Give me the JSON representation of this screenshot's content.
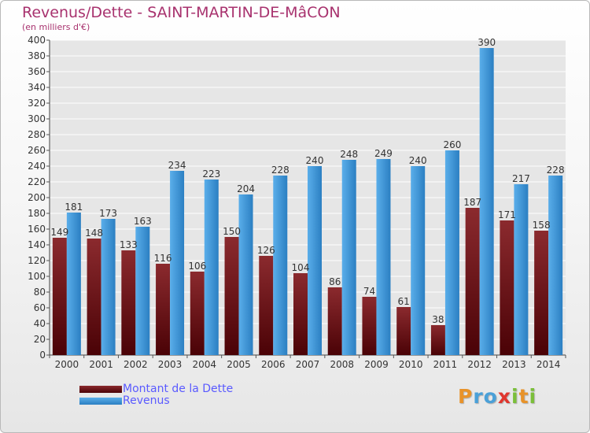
{
  "header": {
    "title": "Revenus/Dette - SAINT-MARTIN-DE-MâCON",
    "subtitle": "(en milliers d'€)"
  },
  "legend": {
    "items": [
      {
        "label": "Montant de la Dette",
        "color": "#7a1e22"
      },
      {
        "label": "Revenus",
        "color": "#4fa3e3"
      }
    ]
  },
  "logo": {
    "text": "Proxiti"
  },
  "colors": {
    "title": "#a8326e",
    "debt_top": "#8b2a2e",
    "debt_bottom": "#4a0206",
    "revenue_top": "#5aaeea",
    "revenue_bottom": "#2b7fc2",
    "grid": "#ffffff",
    "plot_bg": "#e6e6e6"
  },
  "chart_data": {
    "type": "bar",
    "title": "Revenus/Dette - SAINT-MARTIN-DE-MâCON",
    "subtitle": "(en milliers d'€)",
    "categories": [
      "2000",
      "2001",
      "2002",
      "2003",
      "2004",
      "2005",
      "2006",
      "2007",
      "2008",
      "2009",
      "2010",
      "2011",
      "2012",
      "2013",
      "2014"
    ],
    "series": [
      {
        "name": "Montant de la Dette",
        "values": [
          149,
          148,
          133,
          116,
          106,
          150,
          126,
          104,
          86,
          74,
          61,
          38,
          187,
          171,
          158
        ]
      },
      {
        "name": "Revenus",
        "values": [
          181,
          173,
          163,
          234,
          223,
          204,
          228,
          240,
          248,
          249,
          240,
          260,
          390,
          217,
          228
        ]
      }
    ],
    "ylim": [
      0,
      400
    ],
    "yticks": [
      0,
      20,
      40,
      60,
      80,
      100,
      120,
      140,
      160,
      180,
      200,
      220,
      240,
      260,
      280,
      300,
      320,
      340,
      360,
      380,
      400
    ],
    "grid": true,
    "legend_position": "bottom-left"
  }
}
